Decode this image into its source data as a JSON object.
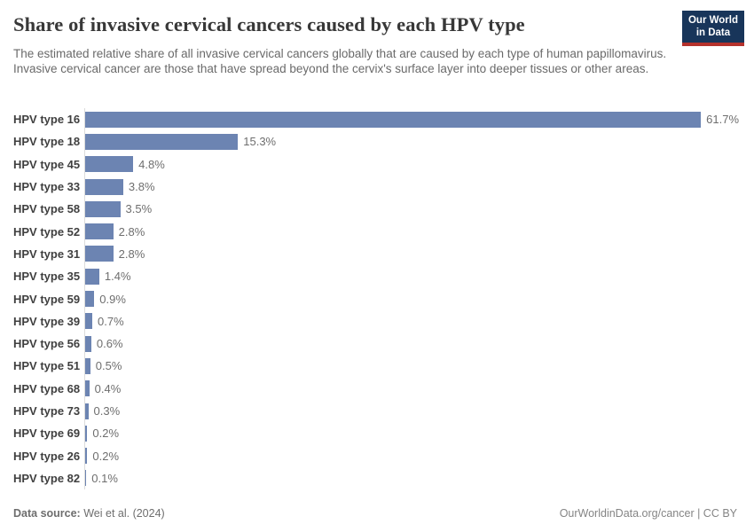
{
  "header": {
    "title": "Share of invasive cervical cancers caused by each HPV type",
    "subtitle": "The estimated relative share of all invasive cervical cancers globally that are caused by each type of human papillomavirus. Invasive cervical cancer are those that have spread beyond the cervix's surface layer into deeper tissues or other areas.",
    "logo": {
      "line1": "Our World",
      "line2": "in Data",
      "bg_color": "#18355a",
      "stripe_color": "#b5312c"
    }
  },
  "chart_data": {
    "type": "bar",
    "orientation": "horizontal",
    "title": "Share of invasive cervical cancers caused by each HPV type",
    "categories": [
      "HPV type 16",
      "HPV type 18",
      "HPV type 45",
      "HPV type 33",
      "HPV type 58",
      "HPV type 52",
      "HPV type 31",
      "HPV type 35",
      "HPV type 59",
      "HPV type 39",
      "HPV type 56",
      "HPV type 51",
      "HPV type 68",
      "HPV type 73",
      "HPV type 69",
      "HPV type 26",
      "HPV type 82"
    ],
    "values": [
      61.7,
      15.3,
      4.8,
      3.8,
      3.5,
      2.8,
      2.8,
      1.4,
      0.9,
      0.7,
      0.6,
      0.5,
      0.4,
      0.3,
      0.2,
      0.2,
      0.1
    ],
    "value_labels": [
      "61.7%",
      "15.3%",
      "4.8%",
      "3.8%",
      "3.5%",
      "2.8%",
      "2.8%",
      "1.4%",
      "0.9%",
      "0.7%",
      "0.6%",
      "0.5%",
      "0.4%",
      "0.3%",
      "0.2%",
      "0.2%",
      "0.1%"
    ],
    "unit": "%",
    "xlim": [
      0,
      61.7
    ],
    "bar_color": "#6c84b2",
    "axis_line_color": "#dcdcdc",
    "grid": false,
    "legend": "none",
    "xlabel": "",
    "ylabel": ""
  },
  "footer": {
    "source_label": "Data source:",
    "source_value": "Wei et al. (2024)",
    "attribution": "OurWorldinData.org/cancer | CC BY"
  }
}
